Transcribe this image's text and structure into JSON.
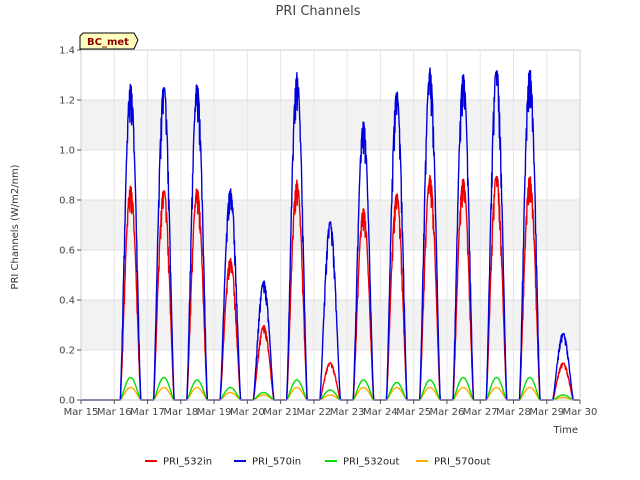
{
  "chart_data": {
    "type": "line",
    "title": "PRI Channels",
    "xlabel": "Time",
    "ylabel": "PRI Channels (W/m2/nm)",
    "badge": "BC_met",
    "ylim": [
      0,
      1.4
    ],
    "xlim": [
      15,
      30
    ],
    "x_ticks": [
      15,
      16,
      17,
      18,
      19,
      20,
      21,
      22,
      23,
      24,
      25,
      26,
      27,
      28,
      29,
      30
    ],
    "x_tick_labels": [
      "Mar 15",
      "Mar 16",
      "Mar 17",
      "Mar 18",
      "Mar 19",
      "Mar 20",
      "Mar 21",
      "Mar 22",
      "Mar 23",
      "Mar 24",
      "Mar 25",
      "Mar 26",
      "Mar 27",
      "Mar 28",
      "Mar 29",
      "Mar 30"
    ],
    "y_ticks": [
      0.0,
      0.2,
      0.4,
      0.6,
      0.8,
      1.0,
      1.2,
      1.4
    ],
    "y_tick_labels": [
      "0.0",
      "0.2",
      "0.4",
      "0.6",
      "0.8",
      "1.0",
      "1.2",
      "1.4"
    ],
    "days": [
      15.85,
      16.85,
      17.85,
      18.85,
      19.85,
      20.85,
      21.85,
      22.85,
      23.85,
      24.85,
      25.85,
      26.85,
      27.85,
      28.85
    ],
    "series": [
      {
        "name": "PRI_532in",
        "color": "#ee0000",
        "peaks": [
          0.0,
          0.86,
          0.85,
          0.85,
          0.57,
          0.3,
          0.88,
          0.15,
          0.77,
          0.83,
          0.9,
          0.89,
          0.91,
          0.9,
          0.15
        ]
      },
      {
        "name": "PRI_570in",
        "color": "#0000dd",
        "peaks": [
          0.0,
          1.27,
          1.27,
          1.27,
          0.85,
          0.48,
          1.31,
          0.72,
          1.12,
          1.24,
          1.33,
          1.31,
          1.34,
          1.33,
          0.27
        ]
      },
      {
        "name": "PRI_532out",
        "color": "#00dd00",
        "peaks": [
          0.0,
          0.09,
          0.09,
          0.08,
          0.05,
          0.03,
          0.08,
          0.04,
          0.08,
          0.07,
          0.08,
          0.09,
          0.09,
          0.09,
          0.02
        ]
      },
      {
        "name": "PRI_570out",
        "color": "#ffaa00",
        "peaks": [
          0.0,
          0.05,
          0.05,
          0.05,
          0.03,
          0.02,
          0.05,
          0.02,
          0.05,
          0.05,
          0.05,
          0.05,
          0.05,
          0.05,
          0.01
        ]
      }
    ],
    "grid": true,
    "legend_position": "bottom"
  }
}
